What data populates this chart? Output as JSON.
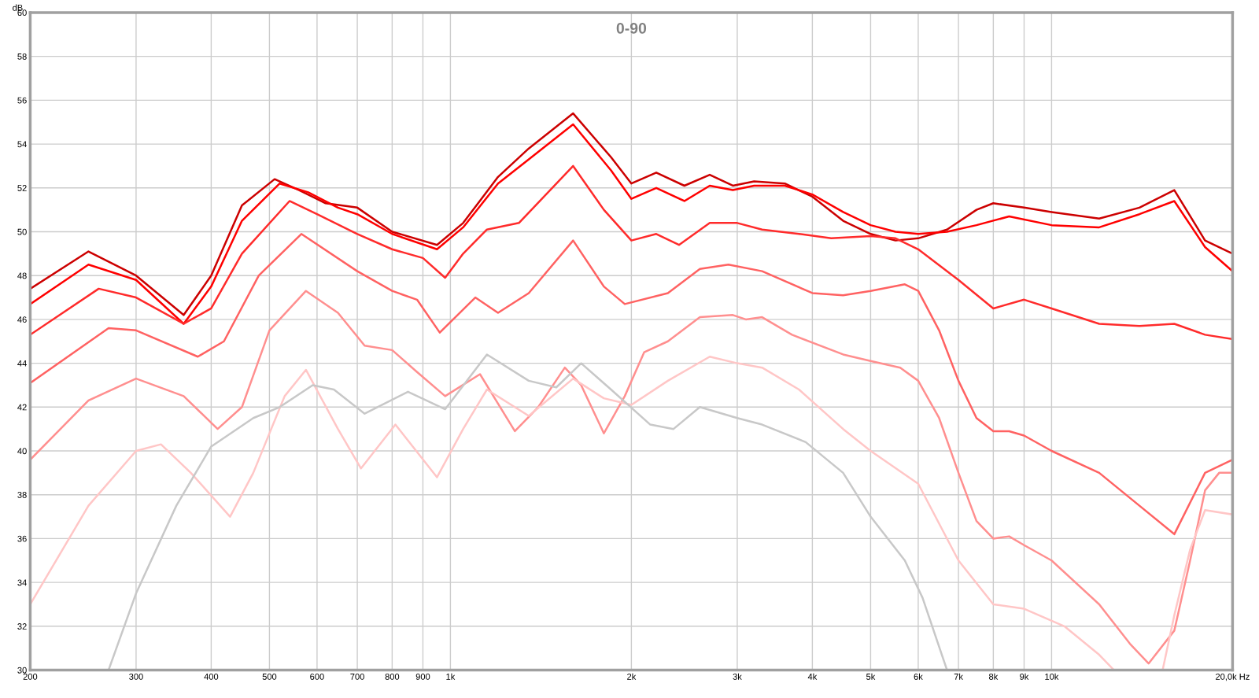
{
  "chart_data": {
    "type": "line",
    "title": "0-90",
    "ylabel": "dB",
    "log": "x",
    "grid": true,
    "legend": false,
    "marker": "none",
    "line_style": "solid",
    "xlim": [
      200,
      20000
    ],
    "xticks": [
      200,
      300,
      400,
      500,
      600,
      700,
      800,
      900,
      {
        "value": 1000,
        "label": "1k"
      },
      {
        "value": 2000,
        "label": "2k"
      },
      {
        "value": 3000,
        "label": "3k"
      },
      {
        "value": 4000,
        "label": "4k"
      },
      {
        "value": 5000,
        "label": "5k"
      },
      {
        "value": 6000,
        "label": "6k"
      },
      {
        "value": 7000,
        "label": "7k"
      },
      {
        "value": 8000,
        "label": "8k"
      },
      {
        "value": 9000,
        "label": "9k"
      },
      {
        "value": 10000,
        "label": "10k"
      },
      {
        "value": 20000,
        "label": "20,0k Hz"
      }
    ],
    "ylim": [
      30,
      60
    ],
    "yticks": [
      30,
      32,
      34,
      36,
      38,
      40,
      42,
      44,
      46,
      48,
      50,
      52,
      54,
      56,
      58,
      60
    ],
    "series": [
      {
        "color": "#cc0000",
        "x": [
          200,
          250,
          300,
          360,
          400,
          450,
          510,
          560,
          620,
          700,
          800,
          950,
          1050,
          1200,
          1350,
          1600,
          1850,
          2000,
          2200,
          2450,
          2700,
          2950,
          3200,
          3600,
          4000,
          4500,
          5000,
          5500,
          6000,
          6700,
          7500,
          8000,
          9000,
          10000,
          12000,
          14000,
          16000,
          18000,
          20000
        ],
        "values": [
          47.4,
          49.1,
          48,
          46.2,
          48,
          51.2,
          52.4,
          51.9,
          51.3,
          51.1,
          50,
          49.4,
          50.4,
          52.5,
          53.8,
          55.4,
          53.4,
          52.2,
          52.7,
          52.1,
          52.6,
          52.1,
          52.3,
          52.2,
          51.6,
          50.5,
          49.9,
          49.6,
          49.7,
          50.1,
          51,
          51.3,
          51.1,
          50.9,
          50.6,
          51.1,
          51.9,
          49.6,
          49
        ]
      },
      {
        "color": "#ff0000",
        "x": [
          200,
          250,
          300,
          360,
          400,
          450,
          520,
          580,
          650,
          700,
          800,
          950,
          1050,
          1200,
          1350,
          1600,
          1850,
          2000,
          2200,
          2450,
          2700,
          2950,
          3200,
          3600,
          4000,
          4500,
          5000,
          5500,
          6000,
          6700,
          7500,
          8500,
          10000,
          12000,
          14000,
          16000,
          18000,
          20000
        ],
        "values": [
          46.7,
          48.5,
          47.8,
          45.8,
          47.5,
          50.5,
          52.2,
          51.8,
          51.1,
          50.8,
          49.9,
          49.2,
          50.2,
          52.2,
          53.3,
          54.9,
          52.8,
          51.5,
          52,
          51.4,
          52.1,
          51.9,
          52.1,
          52.1,
          51.7,
          50.9,
          50.3,
          50,
          49.9,
          50,
          50.3,
          50.7,
          50.3,
          50.2,
          50.8,
          51.4,
          49.3,
          48.2
        ]
      },
      {
        "color": "#ff2b2b",
        "x": [
          200,
          260,
          300,
          360,
          400,
          450,
          540,
          600,
          700,
          800,
          900,
          980,
          1050,
          1150,
          1300,
          1600,
          1800,
          2000,
          2200,
          2400,
          2700,
          3000,
          3300,
          3800,
          4300,
          5000,
          5500,
          6000,
          7000,
          8000,
          9000,
          10000,
          12000,
          14000,
          16000,
          18000,
          20000
        ],
        "values": [
          45.3,
          47.4,
          47,
          45.8,
          46.5,
          49,
          51.4,
          50.8,
          49.9,
          49.2,
          48.8,
          47.9,
          49,
          50.1,
          50.4,
          53,
          51,
          49.6,
          49.9,
          49.4,
          50.4,
          50.4,
          50.1,
          49.9,
          49.7,
          49.8,
          49.7,
          49.2,
          47.8,
          46.5,
          46.9,
          46.5,
          45.8,
          45.7,
          45.8,
          45.3,
          45.1
        ]
      },
      {
        "color": "#ff6262",
        "x": [
          200,
          270,
          300,
          380,
          420,
          480,
          565,
          700,
          800,
          880,
          960,
          1100,
          1200,
          1350,
          1600,
          1800,
          1950,
          2300,
          2600,
          2900,
          3300,
          4000,
          4500,
          5000,
          5700,
          6000,
          6500,
          7000,
          7500,
          8000,
          8500,
          9000,
          10000,
          12000,
          14000,
          16000,
          18000,
          20000
        ],
        "values": [
          43.1,
          45.6,
          45.5,
          44.3,
          45,
          48,
          49.9,
          48.2,
          47.3,
          46.9,
          45.4,
          47,
          46.3,
          47.2,
          49.6,
          47.5,
          46.7,
          47.2,
          48.3,
          48.5,
          48.2,
          47.2,
          47.1,
          47.3,
          47.6,
          47.3,
          45.5,
          43.2,
          41.5,
          40.9,
          40.9,
          40.7,
          40,
          39,
          37.5,
          36.2,
          39,
          39.6
        ]
      },
      {
        "color": "#ff8f8f",
        "x": [
          200,
          250,
          300,
          360,
          410,
          450,
          500,
          575,
          650,
          720,
          800,
          880,
          980,
          1120,
          1280,
          1400,
          1550,
          1650,
          1800,
          1950,
          2100,
          2300,
          2600,
          2950,
          3100,
          3300,
          3700,
          4500,
          5000,
          5600,
          6000,
          6500,
          7000,
          7500,
          8000,
          8500,
          9000,
          10000,
          12000,
          13500,
          14500,
          16000,
          17000,
          18000,
          19000,
          20000
        ],
        "values": [
          39.6,
          42.3,
          43.3,
          42.5,
          41,
          42,
          45.5,
          47.3,
          46.3,
          44.8,
          44.6,
          43.6,
          42.5,
          43.5,
          40.9,
          42,
          43.8,
          43,
          40.8,
          42.5,
          44.5,
          45,
          46.1,
          46.2,
          46,
          46.1,
          45.3,
          44.4,
          44.1,
          43.8,
          43.2,
          41.5,
          39,
          36.8,
          36,
          36.1,
          35.7,
          35,
          33,
          31.2,
          30.3,
          31.8,
          35,
          38.2,
          39,
          39
        ]
      },
      {
        "color": "#ffc6c6",
        "x": [
          200,
          250,
          300,
          330,
          370,
          430,
          470,
          530,
          575,
          650,
          710,
          810,
          950,
          1050,
          1150,
          1350,
          1600,
          1800,
          2000,
          2300,
          2700,
          3000,
          3300,
          3800,
          4500,
          5000,
          6000,
          7000,
          8000,
          9000,
          10500,
          12000,
          12700,
          15300,
          16000,
          17000,
          18000,
          20000
        ],
        "values": [
          33,
          37.5,
          40,
          40.3,
          39,
          37,
          39,
          42.5,
          43.7,
          41,
          39.2,
          41.2,
          38.8,
          41,
          42.8,
          41.6,
          43.3,
          42.4,
          42.1,
          43.2,
          44.3,
          44,
          43.8,
          42.8,
          41,
          40,
          38.5,
          35,
          33,
          32.8,
          32,
          30.7,
          30,
          30,
          32.5,
          35.5,
          37.3,
          37.1
        ]
      },
      {
        "color": "#c8c8c8",
        "x": [
          270,
          300,
          350,
          400,
          470,
          520,
          590,
          640,
          720,
          850,
          980,
          1150,
          1350,
          1500,
          1650,
          1850,
          2150,
          2350,
          2600,
          3000,
          3300,
          3900,
          4500,
          5000,
          5700,
          6100,
          6700
        ],
        "values": [
          30,
          33.5,
          37.5,
          40.2,
          41.5,
          42,
          43,
          42.8,
          41.7,
          42.7,
          41.9,
          44.4,
          43.2,
          42.9,
          44,
          42.8,
          41.2,
          41,
          42,
          41.5,
          41.2,
          40.4,
          39,
          37,
          35,
          33.3,
          30
        ]
      }
    ]
  }
}
